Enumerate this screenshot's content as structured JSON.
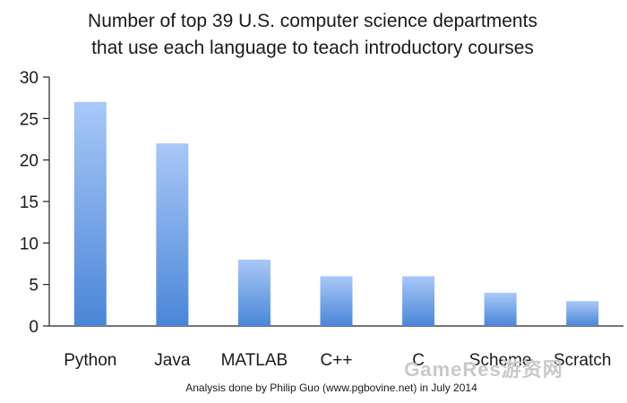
{
  "chart_data": {
    "type": "bar",
    "title": "Number of top 39 U.S. computer science departments that use each language to teach introductory courses",
    "title_lines": [
      "Number of top 39 U.S. computer science departments",
      "that use each language to teach introductory courses"
    ],
    "categories": [
      "Python",
      "Java",
      "MATLAB",
      "C++",
      "C",
      "Scheme",
      "Scratch"
    ],
    "values": [
      27,
      22,
      8,
      6,
      6,
      4,
      3
    ],
    "xlabel": "",
    "ylabel": "",
    "ylim": [
      0,
      30
    ],
    "yticks": [
      0,
      5,
      10,
      15,
      20,
      25,
      30
    ],
    "grid": false,
    "legend": "none",
    "bar_color_top": "#a9c8f7",
    "bar_color_bottom": "#4a86d8"
  },
  "footer": {
    "credit": "Analysis done by Philip Guo (www.pgbovine.net) in July 2014"
  },
  "watermark": {
    "text": "GameRes游资网"
  }
}
